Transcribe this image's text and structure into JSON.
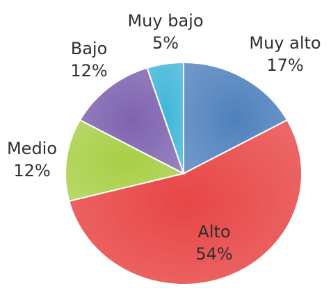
{
  "chart_data": {
    "type": "pie",
    "title": "",
    "categories": [
      "Muy alto",
      "Alto",
      "Medio",
      "Bajo",
      "Muy bajo"
    ],
    "values": [
      17,
      54,
      12,
      12,
      5
    ],
    "value_labels": [
      "17%",
      "54%",
      "12%",
      "12%",
      "5%"
    ],
    "colors": [
      "#4f81bd",
      "#e84646",
      "#a8cf45",
      "#7f64b0",
      "#3fb6d8"
    ],
    "unit": "%",
    "legend": "none",
    "start_angle": "top, clockwise",
    "grid": false
  }
}
